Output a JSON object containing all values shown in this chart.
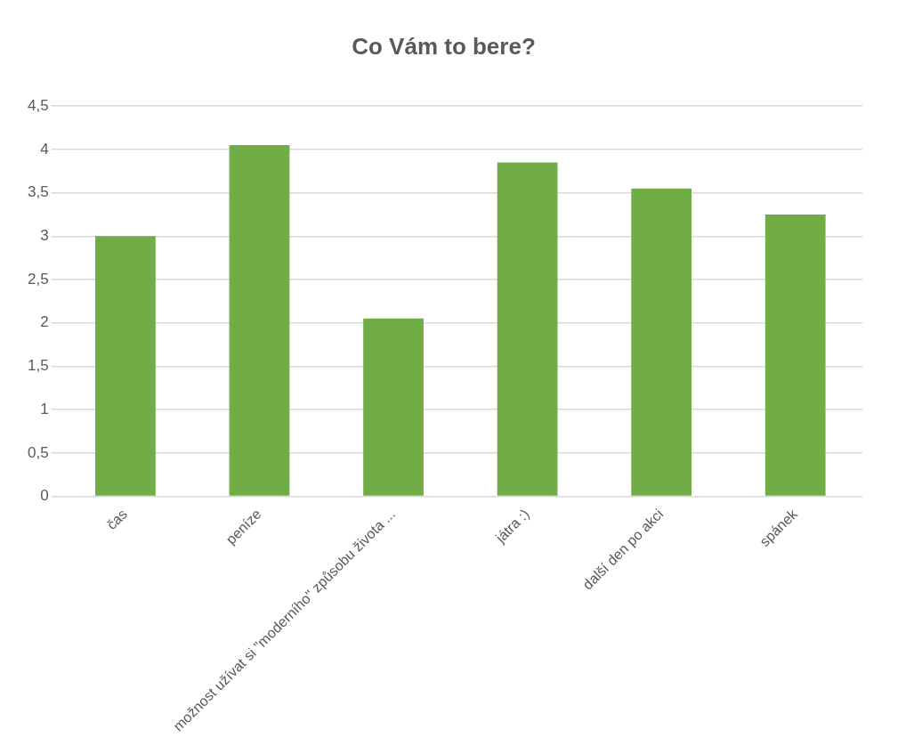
{
  "chart_data": {
    "type": "bar",
    "title": "Co Vám to bere?",
    "categories": [
      "čas",
      "peníze",
      "možnost užívat si \"moderního\" způsobu života ...",
      "játra :)",
      "další den po akci",
      "spánek"
    ],
    "values": [
      3,
      4.05,
      2.05,
      3.85,
      3.55,
      3.25
    ],
    "color": "#70ad47",
    "ylim": [
      0,
      4.5
    ],
    "yticks": [
      0,
      {
        "value": 0.5,
        "label": "0,5"
      },
      1,
      {
        "value": 1.5,
        "label": "1,5"
      },
      2,
      {
        "value": 2.5,
        "label": "2,5"
      },
      3,
      {
        "value": 3.5,
        "label": "3,5"
      },
      4,
      {
        "value": 4.5,
        "label": "4,5"
      }
    ],
    "grid": "y",
    "legend": false
  }
}
